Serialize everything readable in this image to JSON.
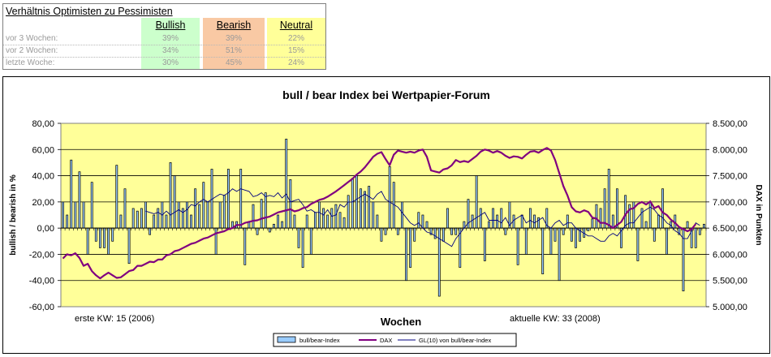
{
  "summary": {
    "title": "Verhältnis Optimisten zu Pessimisten",
    "headers": {
      "bullish": "Bullish",
      "bearish": "Bearish",
      "neutral": "Neutral"
    },
    "colors": {
      "bullish": "#ccffcc",
      "bearish": "#f9c9a4",
      "neutral": "#ffff99"
    },
    "rows": [
      {
        "label": "vor 3 Wochen:",
        "bullish": "39%",
        "bearish": "39%",
        "neutral": "22%"
      },
      {
        "label": "vor 2 Wochen:",
        "bullish": "34%",
        "bearish": "51%",
        "neutral": "15%"
      },
      {
        "label": "letzte Woche:",
        "bullish": "30%",
        "bearish": "45%",
        "neutral": "24%"
      }
    ]
  },
  "chart_data": {
    "type": "bar",
    "title": "bull / bear Index bei Wertpapier-Forum",
    "xlabel": "Wochen",
    "ylabel": "bullish / bearish in %",
    "y2label": "DAX in Punkten",
    "x_start_label": "erste KW: 15 (2006)",
    "x_end_label": "aktuelle KW: 33 (2008)",
    "ylim": [
      -60,
      80
    ],
    "y2lim": [
      5000,
      8500
    ],
    "yticks": [
      "80,00",
      "60,00",
      "40,00",
      "20,00",
      "0,00",
      "-20,00",
      "-40,00",
      "-60,00"
    ],
    "y2ticks": [
      "8.500,00",
      "8.000,00",
      "7.500,00",
      "7.000,00",
      "6.500,00",
      "6.000,00",
      "5.500,00",
      "5.000,00"
    ],
    "grid": true,
    "legend": [
      "bull/bear-Index",
      "DAX",
      "GL(10) von bull/bear-Index"
    ],
    "colors": {
      "plot_bg": "#ffff99",
      "bar_fill": "#99ccff",
      "dax": "#800080",
      "gl10": "#000080"
    },
    "series": [
      {
        "name": "bull/bear-Index",
        "axis": "left",
        "type": "bar",
        "values": [
          20,
          10,
          52,
          20,
          43,
          20,
          -20,
          35,
          -10,
          -15,
          -15,
          -20,
          -10,
          48,
          10,
          30,
          -27,
          15,
          13,
          15,
          20,
          -5,
          10,
          15,
          20,
          10,
          50,
          40,
          20,
          15,
          20,
          10,
          30,
          18,
          35,
          20,
          45,
          -20,
          20,
          25,
          45,
          5,
          5,
          45,
          -28,
          5,
          18,
          -5,
          22,
          27,
          -3,
          3,
          10,
          5,
          68,
          37,
          10,
          -15,
          -30,
          10,
          -20,
          12,
          20,
          15,
          10,
          15,
          18,
          12,
          8,
          25,
          38,
          40,
          30,
          28,
          32,
          20,
          10,
          -10,
          -5,
          47,
          35,
          -5,
          20,
          -40,
          -30,
          -10,
          12,
          10,
          5,
          -5,
          -8,
          -52,
          -10,
          15,
          -5,
          -5,
          -30,
          5,
          22,
          10,
          40,
          15,
          -25,
          5,
          15,
          10,
          15,
          -5,
          20,
          10,
          -28,
          10,
          -20,
          15,
          10,
          8,
          -35,
          15,
          -20,
          -10,
          -40,
          -5,
          10,
          -10,
          -15,
          -10,
          -7,
          -2,
          7,
          18,
          15,
          30,
          45,
          10,
          30,
          -15,
          25,
          18,
          20,
          -25,
          15,
          5,
          20,
          -10,
          10,
          30,
          -20,
          5,
          10,
          -5,
          -48,
          5,
          -15,
          -15,
          -5,
          3
        ]
      },
      {
        "name": "DAX",
        "axis": "right",
        "type": "line",
        "values": [
          5920,
          6000,
          5980,
          6020,
          5930,
          5780,
          5820,
          5680,
          5600,
          5540,
          5600,
          5650,
          5600,
          5550,
          5560,
          5620,
          5680,
          5700,
          5780,
          5780,
          5820,
          5860,
          5850,
          5900,
          5900,
          5980,
          6000,
          6060,
          6080,
          6120,
          6160,
          6200,
          6220,
          6260,
          6300,
          6320,
          6360,
          6400,
          6420,
          6440,
          6480,
          6500,
          6560,
          6560,
          6600,
          6620,
          6640,
          6650,
          6680,
          6700,
          6720,
          6760,
          6800,
          6820,
          6840,
          6860,
          6820,
          6840,
          6880,
          6900,
          6960,
          7000,
          7040,
          7060,
          7100,
          7150,
          7200,
          7260,
          7320,
          7380,
          7440,
          7520,
          7580,
          7660,
          7760,
          7860,
          7920,
          7950,
          7820,
          7700,
          7900,
          7980,
          7960,
          7940,
          7960,
          7940,
          7980,
          8000,
          7860,
          7600,
          7580,
          7560,
          7620,
          7640,
          7700,
          7800,
          7760,
          7780,
          7760,
          7820,
          7880,
          7960,
          8000,
          7980,
          7940,
          7970,
          7940,
          7880,
          7840,
          7870,
          7860,
          7830,
          7900,
          7960,
          7970,
          7940,
          7990,
          8030,
          7980,
          7800,
          7550,
          7300,
          7120,
          6900,
          6820,
          6800,
          6840,
          6810,
          6700,
          6680,
          6600,
          6600,
          6560,
          6500,
          6560,
          6620,
          6760,
          6860,
          6880,
          6960,
          7000,
          6950,
          7010,
          6880,
          6920,
          6800,
          6750,
          6660,
          6600,
          6520,
          6480,
          6440,
          6480,
          6580
        ]
      },
      {
        "name": "GL(10) von bull/bear-Index",
        "axis": "left",
        "type": "line",
        "values": [
          null,
          null,
          null,
          null,
          null,
          null,
          null,
          null,
          null,
          null,
          null,
          null,
          null,
          null,
          null,
          null,
          null,
          null,
          null,
          null,
          13,
          12,
          11,
          12,
          10,
          13,
          10,
          12,
          14,
          12,
          14,
          18,
          17,
          20,
          22,
          20,
          22,
          24,
          26,
          25,
          27,
          30,
          28,
          30,
          29,
          28,
          24,
          25,
          27,
          24,
          25,
          24,
          27,
          23,
          26,
          20,
          21,
          22,
          18,
          13,
          14,
          12,
          12,
          10,
          14,
          9,
          10,
          18,
          16,
          20,
          20,
          22,
          24,
          26,
          24,
          22,
          26,
          28,
          22,
          20,
          18,
          16,
          12,
          8,
          4,
          2,
          4,
          0,
          -3,
          -4,
          -6,
          -8,
          -10,
          -12,
          -14,
          -8,
          -4,
          0,
          4,
          6,
          8,
          10,
          12,
          6,
          6,
          6,
          4,
          8,
          2,
          6,
          8,
          10,
          4,
          6,
          4,
          6,
          8,
          2,
          0,
          4,
          6,
          2,
          4,
          4,
          0,
          -2,
          -4,
          -6,
          -6,
          -8,
          -10,
          -10,
          -6,
          -4,
          -6,
          -2,
          2,
          4,
          4,
          8,
          12,
          14,
          16,
          14,
          10,
          8,
          4,
          2,
          -2,
          -4,
          -8,
          -8,
          -2,
          4,
          2
        ]
      }
    ]
  }
}
